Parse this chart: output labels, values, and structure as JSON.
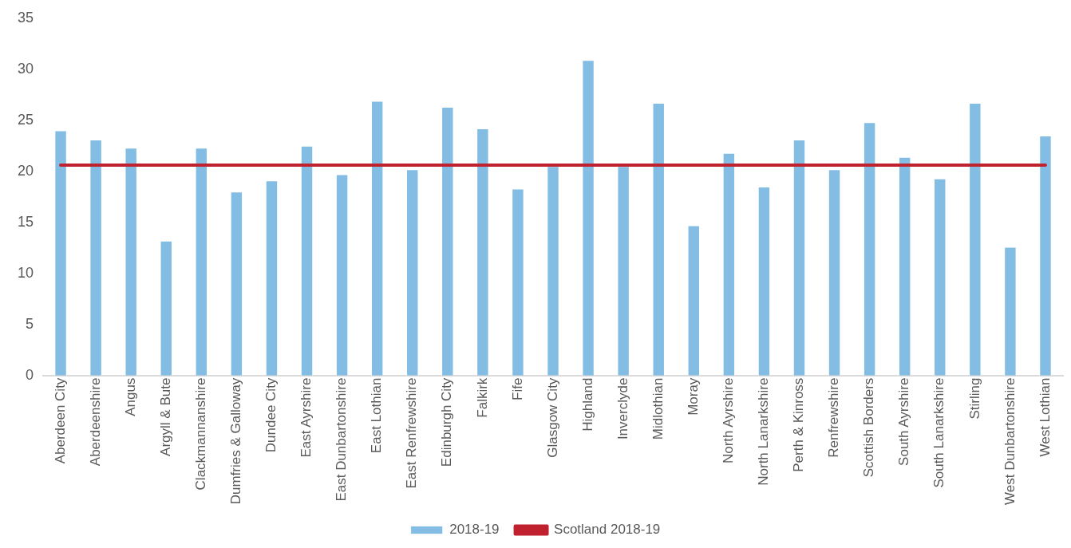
{
  "chart_data": {
    "type": "bar",
    "categories": [
      "Aberdeen City",
      "Aberdeenshire",
      "Angus",
      "Argyll & Bute",
      "Clackmannanshire",
      "Dumfries & Galloway",
      "Dundee City",
      "East Ayrshire",
      "East Dunbartonshire",
      "East Lothian",
      "East Renfrewshire",
      "Edinburgh City",
      "Falkirk",
      "Fife",
      "Glasgow City",
      "Highland",
      "Inverclyde",
      "Midlothian",
      "Moray",
      "North Ayrshire",
      "North Lanarkshire",
      "Perth & Kinross",
      "Renfrewshire",
      "Scottish Borders",
      "South Ayrshire",
      "South Lanarkshire",
      "Stirling",
      "West Dunbartonshire",
      "West Lothian"
    ],
    "series": [
      {
        "name": "2018-19",
        "color": "#83bde4",
        "values": [
          24.0,
          23.1,
          22.3,
          13.2,
          22.3,
          18.0,
          19.1,
          22.5,
          19.7,
          26.9,
          20.2,
          26.3,
          24.2,
          18.3,
          20.5,
          30.9,
          20.5,
          26.7,
          14.7,
          21.8,
          18.5,
          23.1,
          20.2,
          24.8,
          21.4,
          19.3,
          26.7,
          12.6,
          23.5
        ]
      },
      {
        "name": "Scotland 2018-19",
        "type": "line",
        "color": "#c0212f",
        "values": [
          20.6,
          20.6,
          20.6,
          20.6,
          20.6,
          20.6,
          20.6,
          20.6,
          20.6,
          20.6,
          20.6,
          20.6,
          20.6,
          20.6,
          20.6,
          20.6,
          20.6,
          20.6,
          20.6,
          20.6,
          20.6,
          20.6,
          20.6,
          20.6,
          20.6,
          20.6,
          20.6,
          20.6,
          20.6
        ]
      }
    ],
    "ylim": [
      0,
      35
    ],
    "yticks": [
      0,
      5,
      10,
      15,
      20,
      25,
      30,
      35
    ],
    "grid": false,
    "legend": "bottom",
    "marker": "none"
  }
}
